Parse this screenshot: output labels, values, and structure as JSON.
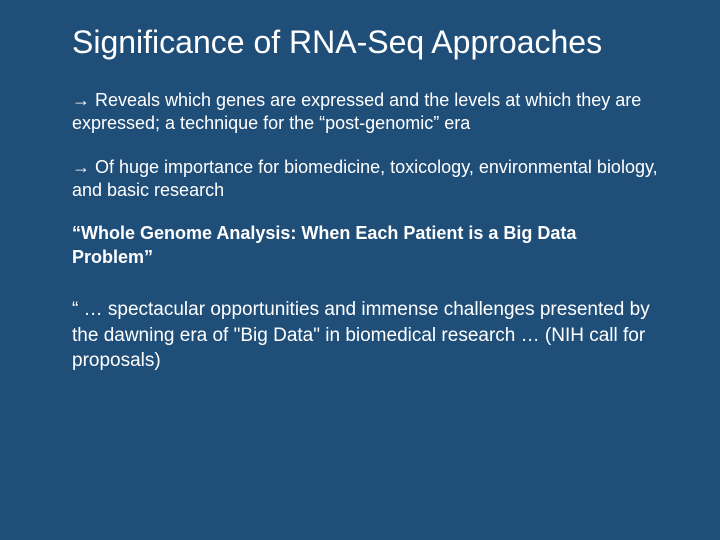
{
  "slide": {
    "background_color": "#1f4e79",
    "text_color": "#ffffff",
    "title": "Significance of RNA-Seq Approaches",
    "title_fontsize": 32,
    "body_fontsize": 18,
    "bullets": [
      "→ Reveals which genes are expressed and the levels at which they are expressed; a technique for the “post-genomic” era",
      "→ Of huge importance for biomedicine, toxicology, environmental biology, and basic research"
    ],
    "bold_paragraph": "“Whole Genome Analysis: When Each Patient  is a Big Data Problem”",
    "quote": "“ … spectacular opportunities and immense challenges presented by the dawning era of \"Big Data\" in biomedical research … (NIH call for proposals)"
  }
}
